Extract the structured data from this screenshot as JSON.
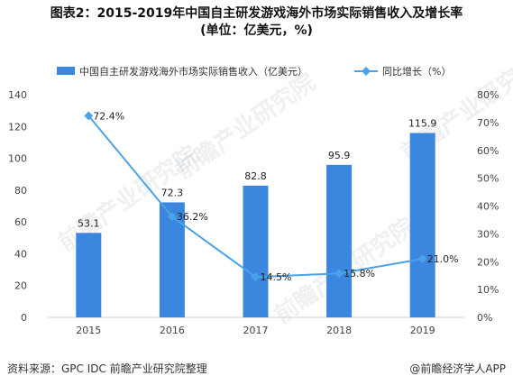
{
  "title_line1": "图表2：2015-2019年中国自主研发游戏海外市场实际销售收入及增长率",
  "title_line2": "(单位：亿美元，%)",
  "source": "资料来源：GPC IDC 前瞻产业研究院整理",
  "brand": "@前瞻经济学人APP",
  "watermark": "前瞻产业研究院",
  "colors": {
    "bar": "#3b86de",
    "line": "#4aa3e8",
    "axis": "#d0d0d0"
  },
  "chart_data": {
    "type": "bar",
    "categories": [
      "2015",
      "2016",
      "2017",
      "2018",
      "2019"
    ],
    "series": [
      {
        "name": "中国自主研发游戏海外市场实际销售收入（亿美元）",
        "type": "bar",
        "values": [
          53.1,
          72.3,
          82.8,
          95.9,
          115.9
        ],
        "axis": "left",
        "labels": [
          "53.1",
          "72.3",
          "82.8",
          "95.9",
          "115.9"
        ]
      },
      {
        "name": "同比增长（%）",
        "type": "line",
        "values": [
          72.4,
          36.2,
          14.5,
          15.8,
          21.0
        ],
        "axis": "right",
        "labels": [
          "72.4%",
          "36.2%",
          "14.5%",
          "15.8%",
          "21.0%"
        ]
      }
    ],
    "y_left": {
      "min": 0,
      "max": 140,
      "ticks": [
        "0",
        "20",
        "40",
        "60",
        "80",
        "100",
        "120",
        "140"
      ]
    },
    "y_right": {
      "min": 0,
      "max": 80,
      "ticks": [
        "0%",
        "10%",
        "20%",
        "30%",
        "40%",
        "50%",
        "60%",
        "70%",
        "80%"
      ]
    },
    "legend": "top"
  }
}
